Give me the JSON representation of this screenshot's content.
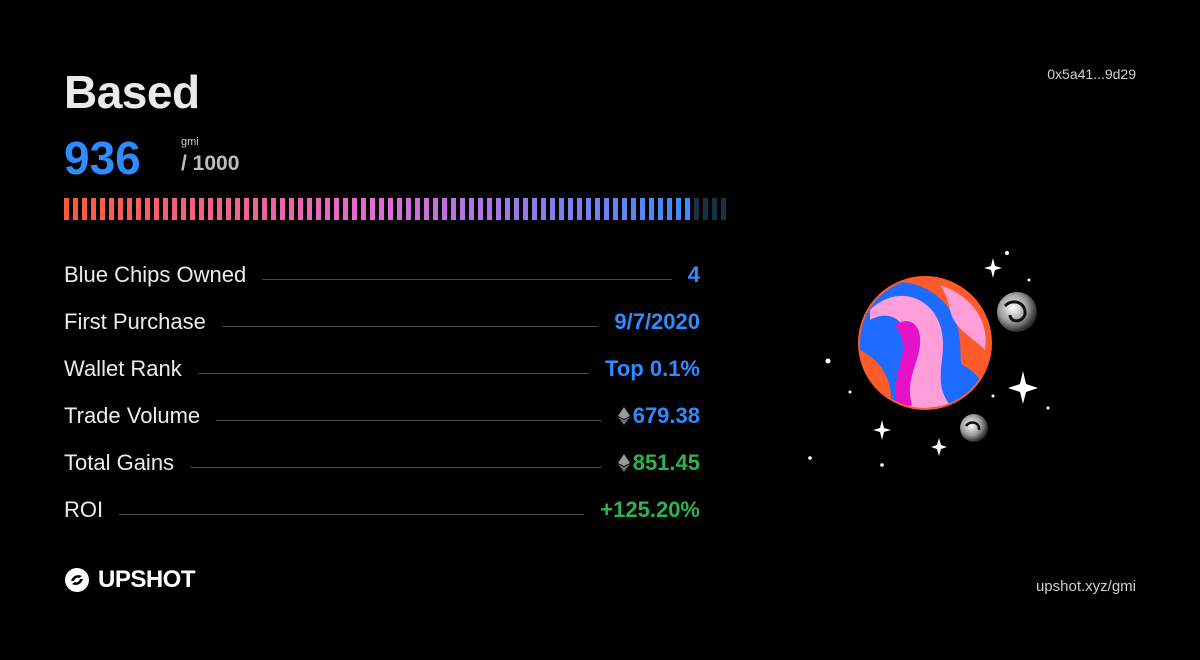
{
  "card": {
    "title": "Based",
    "wallet_address": "0x5a41...9d29",
    "score": "936",
    "score_unit": "gmi",
    "score_max": "/ 1000",
    "score_value": 936,
    "score_total": 1000
  },
  "stats": [
    {
      "label": "Blue Chips Owned",
      "value": "4",
      "color": "#2f8cff",
      "eth": false
    },
    {
      "label": "First Purchase",
      "value": "9/7/2020",
      "color": "#2f8cff",
      "eth": false
    },
    {
      "label": "Wallet Rank",
      "value": "Top 0.1%",
      "color": "#2f8cff",
      "eth": false
    },
    {
      "label": "Trade Volume",
      "value": "679.38",
      "color": "#2f8cff",
      "eth": true
    },
    {
      "label": "Total Gains",
      "value": "851.45",
      "color": "#2fb34f",
      "eth": true
    },
    {
      "label": "ROI",
      "value": "+125.20%",
      "color": "#2fb34f",
      "eth": false
    }
  ],
  "footer": {
    "brand": "UPSHOT",
    "site": "upshot.xyz/gmi"
  },
  "icons": {
    "brand": "upshot-logo-icon",
    "currency": "ethereum-icon",
    "art": "planet-illustration"
  },
  "colors": {
    "background": "#000000",
    "accent_blue": "#2f8cff",
    "accent_green": "#2fb34f",
    "bar_start": "#ff5a3c",
    "bar_mid": "#e36bd6",
    "bar_end": "#3d8bff",
    "bar_empty": "#173246"
  }
}
